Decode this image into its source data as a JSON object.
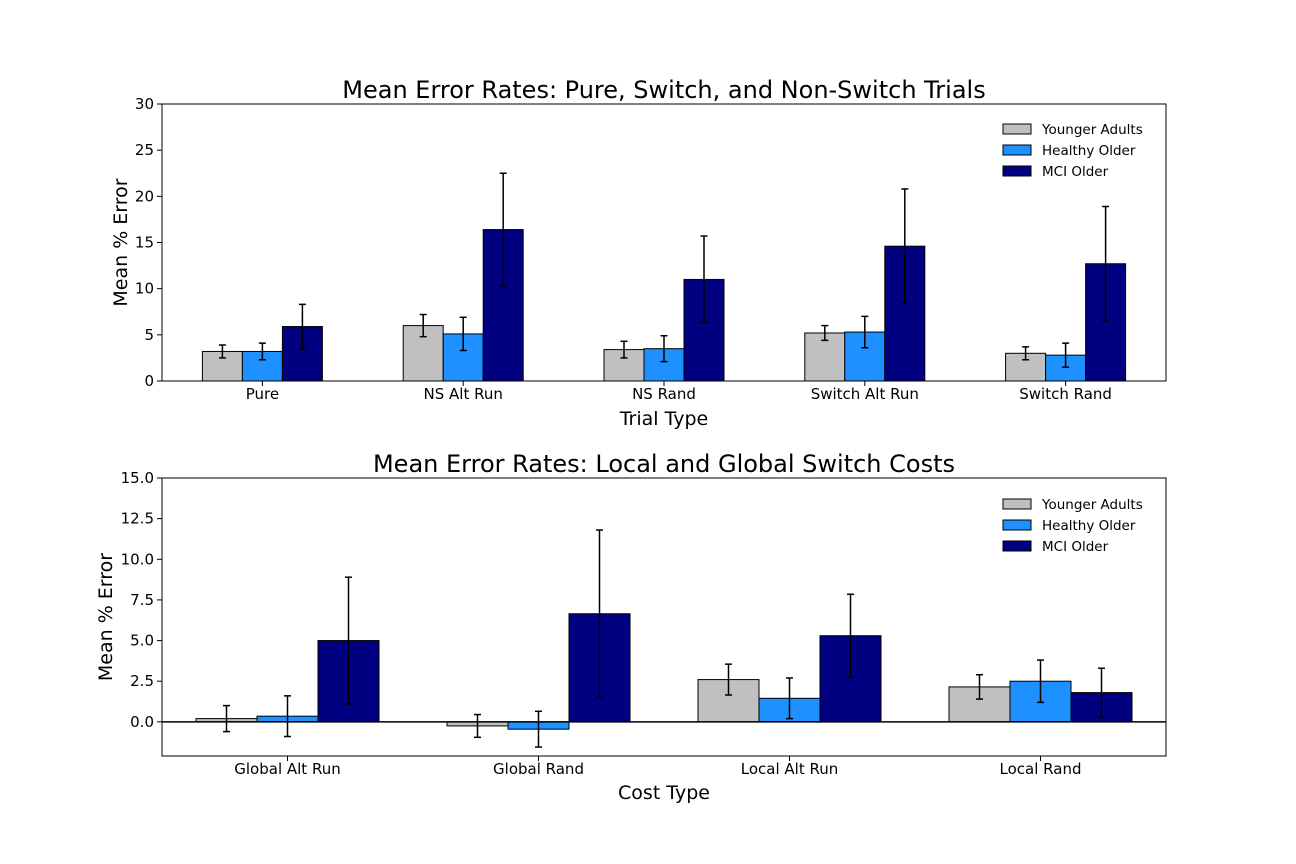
{
  "chart_data": [
    {
      "type": "bar",
      "title": "Mean Error Rates: Pure, Switch, and Non-Switch Trials",
      "xlabel": "Trial Type",
      "ylabel": "Mean % Error",
      "ylim": [
        0,
        30
      ],
      "yticks": [
        0,
        5,
        10,
        15,
        20,
        25,
        30
      ],
      "ytick_labels": [
        "0",
        "5",
        "10",
        "15",
        "20",
        "25",
        "30"
      ],
      "categories": [
        "Pure",
        "NS Alt Run",
        "NS Rand",
        "Switch Alt Run",
        "Switch Rand"
      ],
      "series": [
        {
          "name": "Younger Adults",
          "color": "#c0c0c0",
          "values": [
            3.2,
            6.0,
            3.4,
            5.2,
            3.0
          ],
          "errors": [
            0.7,
            1.2,
            0.9,
            0.8,
            0.7
          ]
        },
        {
          "name": "Healthy Older",
          "color": "#1e90ff",
          "values": [
            3.2,
            5.1,
            3.5,
            5.3,
            2.8
          ],
          "errors": [
            0.9,
            1.8,
            1.4,
            1.7,
            1.3
          ]
        },
        {
          "name": "MCI Older",
          "color": "#000080",
          "values": [
            5.9,
            16.4,
            11.0,
            14.6,
            12.7
          ],
          "errors": [
            2.4,
            6.1,
            4.7,
            6.2,
            6.2
          ]
        }
      ],
      "legend": "top-right",
      "grid": false
    },
    {
      "type": "bar",
      "title": "Mean Error Rates: Local and Global Switch Costs",
      "xlabel": "Cost Type",
      "ylabel": "Mean % Error",
      "ylim": [
        -2.1,
        15
      ],
      "yticks": [
        0,
        2.5,
        5,
        7.5,
        10,
        12.5,
        15
      ],
      "ytick_labels": [
        "0.0",
        "2.5",
        "5.0",
        "7.5",
        "10.0",
        "12.5",
        "15.0"
      ],
      "categories": [
        "Global Alt Run",
        "Global Rand",
        "Local Alt Run",
        "Local Rand"
      ],
      "series": [
        {
          "name": "Younger Adults",
          "color": "#c0c0c0",
          "values": [
            0.2,
            -0.25,
            2.6,
            2.15
          ],
          "errors": [
            0.8,
            0.7,
            0.95,
            0.75
          ]
        },
        {
          "name": "Healthy Older",
          "color": "#1e90ff",
          "values": [
            0.35,
            -0.45,
            1.45,
            2.5
          ],
          "errors": [
            1.25,
            1.1,
            1.25,
            1.3
          ]
        },
        {
          "name": "MCI Older",
          "color": "#000080",
          "values": [
            5.0,
            6.65,
            5.3,
            1.8
          ],
          "errors": [
            3.9,
            5.15,
            2.55,
            1.5
          ]
        }
      ],
      "zero_line": true,
      "legend": "top-right",
      "grid": false
    }
  ]
}
